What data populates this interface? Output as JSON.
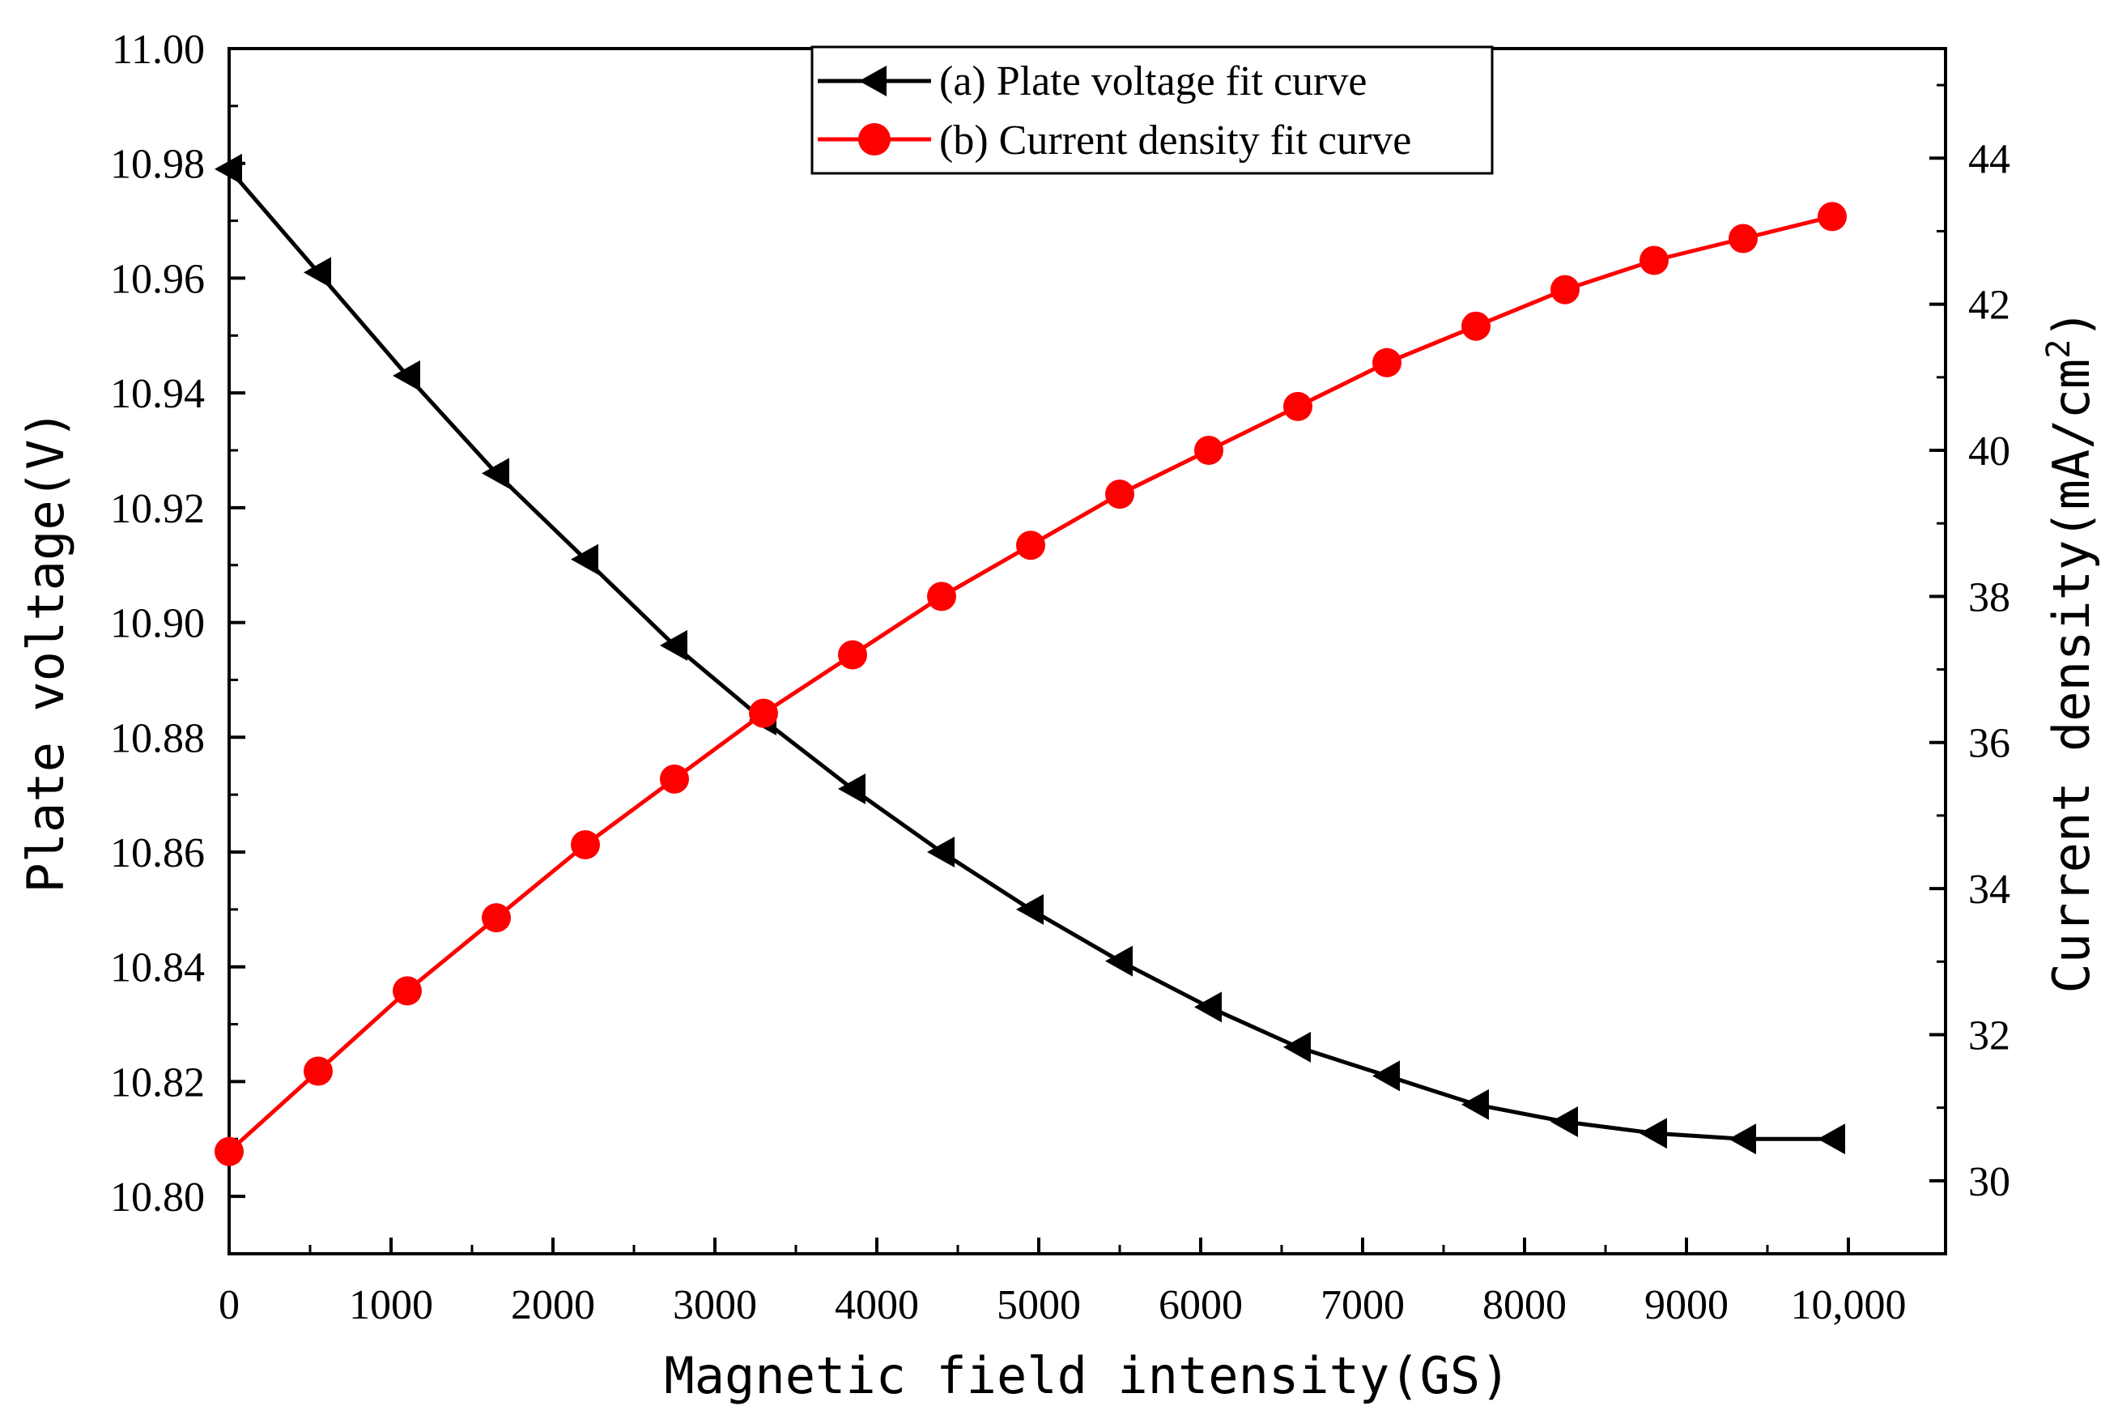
{
  "chart_data": {
    "type": "line",
    "xlabel": "Magnetic field intensity(GS)",
    "ylabel_left": "Plate voltage(V)",
    "ylabel_right_main": "Current density(mA/cm",
    "ylabel_right_sup": "2",
    "ylabel_right_end": ")",
    "xlim": [
      0,
      10600
    ],
    "ylim_left": [
      10.79,
      11.0
    ],
    "ylim_right": [
      29.0,
      45.5
    ],
    "x_ticks": [
      0,
      1000,
      2000,
      3000,
      4000,
      5000,
      6000,
      7000,
      8000,
      9000,
      10000
    ],
    "x_tick_labels": [
      "0",
      "1000",
      "2000",
      "3000",
      "4000",
      "5000",
      "6000",
      "7000",
      "8000",
      "9000",
      "10,000"
    ],
    "y_left_ticks": [
      10.8,
      10.82,
      10.84,
      10.86,
      10.88,
      10.9,
      10.92,
      10.94,
      10.96,
      10.98,
      11.0
    ],
    "y_left_tick_labels": [
      "10.80",
      "10.82",
      "10.84",
      "10.86",
      "10.88",
      "10.90",
      "10.92",
      "10.94",
      "10.96",
      "10.98",
      "11.00"
    ],
    "y_right_ticks": [
      30,
      32,
      34,
      36,
      38,
      40,
      42,
      44
    ],
    "y_right_tick_labels": [
      "30",
      "32",
      "34",
      "36",
      "38",
      "40",
      "42",
      "44"
    ],
    "grid": false,
    "legend_position": "top-center",
    "x": [
      0,
      550,
      1100,
      1650,
      2200,
      2750,
      3300,
      3850,
      4400,
      4950,
      5500,
      6050,
      6600,
      7150,
      7700,
      8250,
      8800,
      9350,
      9900
    ],
    "series": [
      {
        "name": "(a) Plate voltage fit curve",
        "axis": "left",
        "color": "#000000",
        "marker": "left-triangle",
        "values": [
          10.979,
          10.961,
          10.943,
          10.926,
          10.911,
          10.896,
          10.883,
          10.871,
          10.86,
          10.85,
          10.841,
          10.833,
          10.826,
          10.821,
          10.816,
          10.813,
          10.811,
          10.81,
          10.81
        ]
      },
      {
        "name": "(b) Current density fit curve",
        "axis": "right",
        "color": "#ff0000",
        "marker": "circle",
        "values": [
          30.4,
          31.5,
          32.6,
          33.6,
          34.6,
          35.5,
          36.4,
          37.2,
          38.0,
          38.7,
          39.4,
          40.0,
          40.6,
          41.2,
          41.7,
          42.2,
          42.6,
          42.9,
          43.2
        ]
      }
    ]
  }
}
